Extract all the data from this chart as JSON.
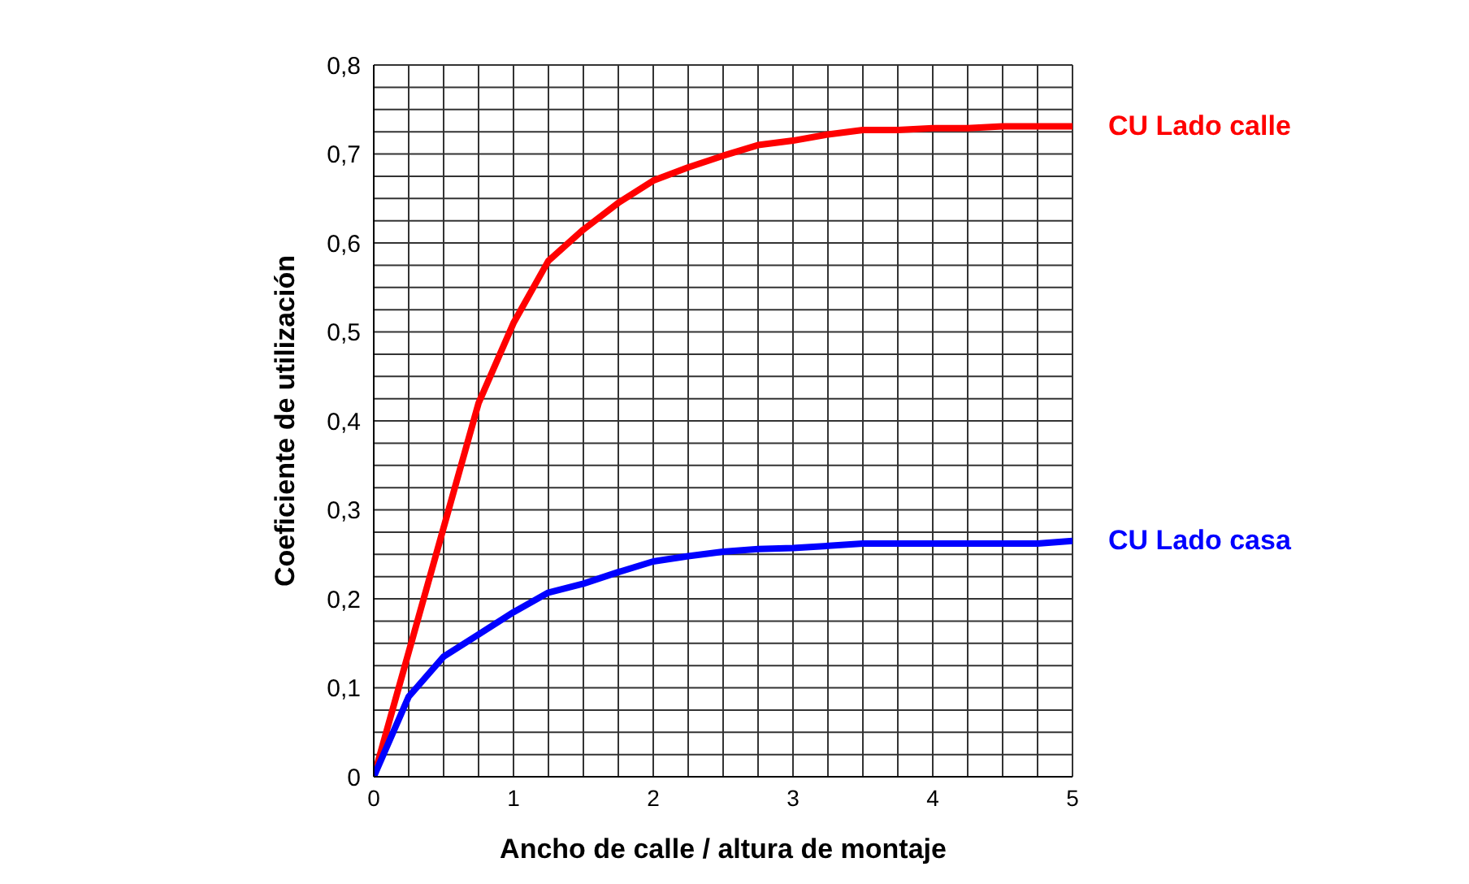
{
  "chart_data": {
    "type": "line",
    "xlabel": "Ancho de calle / altura de montaje",
    "ylabel": "Coeficiente de utilización",
    "xlim": [
      0,
      5
    ],
    "ylim": [
      0,
      0.8
    ],
    "xticks": [
      0,
      {
        "value": 0.25,
        "label": null
      },
      {
        "value": 0.5,
        "label": null
      },
      {
        "value": 0.75,
        "label": null
      },
      1,
      {
        "value": 1.25,
        "label": null
      },
      {
        "value": 1.5,
        "label": null
      },
      {
        "value": 1.75,
        "label": null
      },
      2,
      {
        "value": 2.25,
        "label": null
      },
      {
        "value": 2.5,
        "label": null
      },
      {
        "value": 2.75,
        "label": null
      },
      3,
      {
        "value": 3.25,
        "label": null
      },
      {
        "value": 3.5,
        "label": null
      },
      {
        "value": 3.75,
        "label": null
      },
      4,
      {
        "value": 4.25,
        "label": null
      },
      {
        "value": 4.5,
        "label": null
      },
      {
        "value": 4.75,
        "label": null
      },
      5
    ],
    "yticks": [
      {
        "value": 0,
        "label": "0"
      },
      {
        "value": 0.025,
        "label": null
      },
      {
        "value": 0.05,
        "label": null
      },
      {
        "value": 0.075,
        "label": null
      },
      {
        "value": 0.1,
        "label": "0,1"
      },
      {
        "value": 0.125,
        "label": null
      },
      {
        "value": 0.15,
        "label": null
      },
      {
        "value": 0.175,
        "label": null
      },
      {
        "value": 0.2,
        "label": "0,2"
      },
      {
        "value": 0.225,
        "label": null
      },
      {
        "value": 0.25,
        "label": null
      },
      {
        "value": 0.275,
        "label": null
      },
      {
        "value": 0.3,
        "label": "0,3"
      },
      {
        "value": 0.325,
        "label": null
      },
      {
        "value": 0.35,
        "label": null
      },
      {
        "value": 0.375,
        "label": null
      },
      {
        "value": 0.4,
        "label": "0,4"
      },
      {
        "value": 0.425,
        "label": null
      },
      {
        "value": 0.45,
        "label": null
      },
      {
        "value": 0.475,
        "label": null
      },
      {
        "value": 0.5,
        "label": "0,5"
      },
      {
        "value": 0.525,
        "label": null
      },
      {
        "value": 0.55,
        "label": null
      },
      {
        "value": 0.575,
        "label": null
      },
      {
        "value": 0.6,
        "label": "0,6"
      },
      {
        "value": 0.625,
        "label": null
      },
      {
        "value": 0.65,
        "label": null
      },
      {
        "value": 0.675,
        "label": null
      },
      {
        "value": 0.7,
        "label": "0,7"
      },
      {
        "value": 0.725,
        "label": null
      },
      {
        "value": 0.75,
        "label": null
      },
      {
        "value": 0.775,
        "label": null
      },
      {
        "value": 0.8,
        "label": "0,8"
      }
    ],
    "grid": true,
    "legend": false,
    "marker": "none",
    "line_style": "solid",
    "series": [
      {
        "name": "CU Lado calle",
        "color": "#ff0000",
        "x": [
          0,
          0.25,
          0.5,
          0.75,
          1,
          1.25,
          1.5,
          1.75,
          2,
          2.25,
          2.5,
          2.75,
          3,
          3.25,
          3.5,
          3.75,
          4,
          4.25,
          4.5,
          5
        ],
        "values": [
          0,
          0.14,
          0.28,
          0.42,
          0.51,
          0.58,
          0.615,
          0.645,
          0.67,
          0.685,
          0.698,
          0.71,
          0.715,
          0.722,
          0.727,
          0.727,
          0.729,
          0.729,
          0.731,
          0.731
        ]
      },
      {
        "name": "CU Lado casa",
        "color": "#0000ff",
        "x": [
          0,
          0.25,
          0.5,
          0.75,
          1,
          1.25,
          1.5,
          1.75,
          2,
          2.25,
          2.5,
          2.75,
          3,
          3.5,
          4,
          4.75,
          5
        ],
        "values": [
          0,
          0.09,
          0.135,
          0.16,
          0.185,
          0.207,
          0.217,
          0.23,
          0.242,
          0.248,
          0.253,
          0.256,
          0.257,
          0.262,
          0.262,
          0.262,
          0.265
        ]
      }
    ]
  }
}
